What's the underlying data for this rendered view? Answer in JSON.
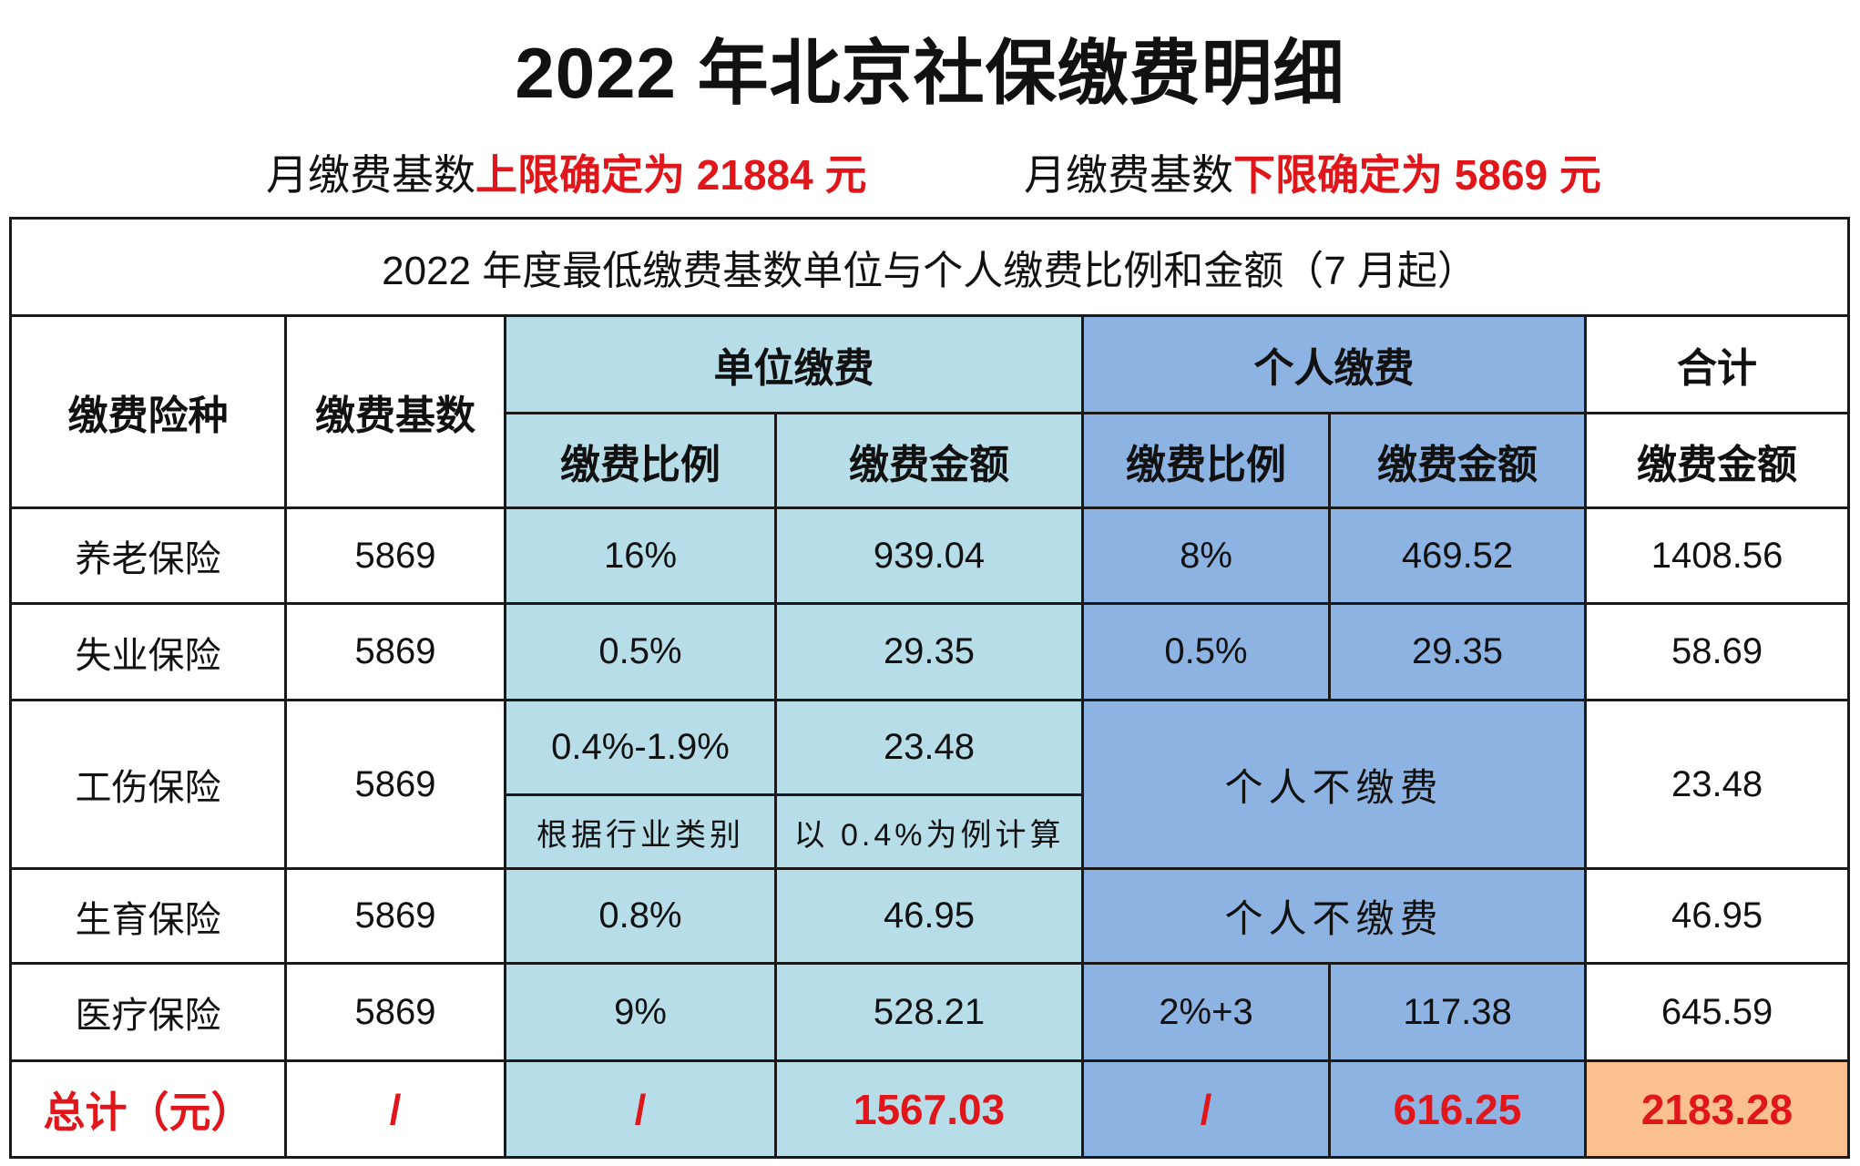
{
  "title": "2022 年北京社保缴费明细",
  "subtitle": {
    "upper_prefix": "月缴费基数",
    "upper_text": "上限确定为 21884 元",
    "lower_prefix": "月缴费基数",
    "lower_text": "下限确定为 5869 元"
  },
  "table": {
    "caption": "2022 年度最低缴费基数单位与个人缴费比例和金额（7 月起）",
    "headers": {
      "type": "缴费险种",
      "base": "缴费基数",
      "employer": "单位缴费",
      "personal": "个人缴费",
      "total": "合计",
      "employer_rate": "缴费比例",
      "employer_amount": "缴费金额",
      "personal_rate": "缴费比例",
      "personal_amount": "缴费金额",
      "total_amount": "缴费金额"
    },
    "rows": [
      {
        "type": "养老保险",
        "base": "5869",
        "employer_rate": "16%",
        "employer_amount": "939.04",
        "personal_rate": "8%",
        "personal_amount": "469.52",
        "total": "1408.56"
      },
      {
        "type": "失业保险",
        "base": "5869",
        "employer_rate": "0.5%",
        "employer_amount": "29.35",
        "personal_rate": "0.5%",
        "personal_amount": "29.35",
        "total": "58.69"
      },
      {
        "type": "工伤保险",
        "base": "5869",
        "employer_rate": "0.4%-1.9%",
        "employer_amount": "23.48",
        "employer_rate_note": "根据行业类别",
        "employer_amount_note": "以 0.4%为例计算",
        "personal": "个人不缴费",
        "total": "23.48"
      },
      {
        "type": "生育保险",
        "base": "5869",
        "employer_rate": "0.8%",
        "employer_amount": "46.95",
        "personal": "个人不缴费",
        "total": "46.95"
      },
      {
        "type": "医疗保险",
        "base": "5869",
        "employer_rate": "9%",
        "employer_amount": "528.21",
        "personal_rate": "2%+3",
        "personal_amount": "117.38",
        "total": "645.59"
      }
    ],
    "totals": {
      "label": "总计（元）",
      "base": "/",
      "employer_rate": "/",
      "employer_amount": "1567.03",
      "personal_rate": "/",
      "personal_amount": "616.25",
      "total": "2183.28"
    }
  },
  "colors": {
    "employer_bg": "#b7dde8",
    "personal_bg": "#8db3e2",
    "grand_total_bg": "#fac090",
    "highlight_red": "#e0161a"
  }
}
